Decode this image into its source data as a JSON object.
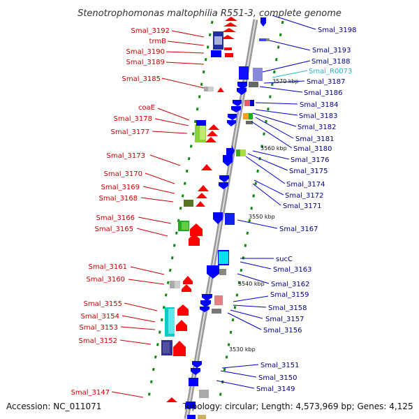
{
  "title": "Stenotrophomonas maltophilia R551-3, complete genome",
  "accession": "Accession: NC_011071",
  "topology": "Topology: circular; Length: 4,573,969 bp; Genes: 4,125",
  "ticks": [
    "3570 kbp",
    "3560 kbp",
    "3550 kbp",
    "3540 kbp",
    "3530 kbp"
  ],
  "left_labels": [
    "Smal_3192",
    "trmB",
    "Smal_3190",
    "Smal_3189",
    "Smal_3185",
    "coaE",
    "Smal_3178",
    "Smal_3177",
    "Smal_3173",
    "Smal_3170",
    "Smal_3169",
    "Smal_3168",
    "Smal_3166",
    "Smal_3165",
    "Smal_3161",
    "Smal_3160",
    "Smal_3155",
    "Smal_3154",
    "Smal_3153",
    "Smal_3152",
    "Smal_3147"
  ],
  "right_labels": [
    "Smal_3198",
    "Smal_3193",
    "Smal_3188",
    "Smal_R0073",
    "Smal_3187",
    "Smal_3186",
    "Smal_3184",
    "Smal_3183",
    "Smal_3182",
    "Smal_3181",
    "Smal_3180",
    "Smal_3176",
    "Smal_3175",
    "Smal_3174",
    "Smal_3172",
    "Smal_3171",
    "Smal_3167",
    "sucC",
    "Smal_3163",
    "Smal_3162",
    "Smal_3159",
    "Smal_3158",
    "Smal_3157",
    "Smal_3156",
    "Smal_3151",
    "Smal_3150",
    "Smal_3149"
  ],
  "colors": {
    "forward_strand": "#ff0000",
    "reverse_strand": "#0000ff",
    "left_label": "#cc0000",
    "right_label": "#00008b",
    "rna_label": "#2ab4d0",
    "backbone": "#999999"
  }
}
